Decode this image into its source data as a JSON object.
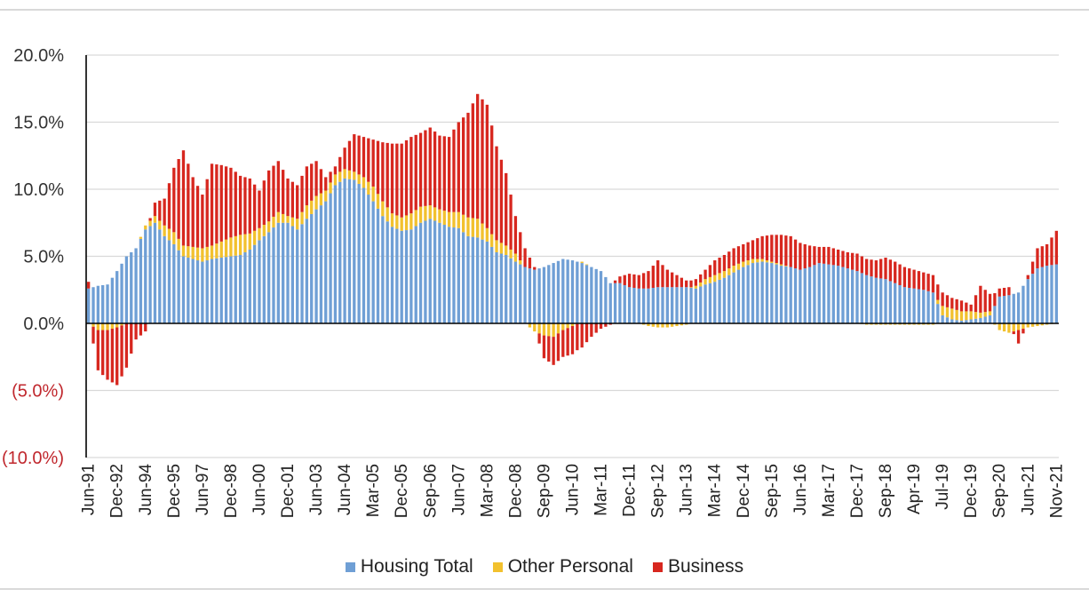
{
  "chart_data": {
    "type": "bar",
    "stacked": true,
    "title": "",
    "xlabel": "",
    "ylabel": "",
    "ylim": [
      -10,
      20
    ],
    "y_ticks": [
      {
        "value": 20,
        "label": "20.0%",
        "color": "#333333"
      },
      {
        "value": 15,
        "label": "15.0%",
        "color": "#333333"
      },
      {
        "value": 10,
        "label": "10.0%",
        "color": "#333333"
      },
      {
        "value": 5,
        "label": "5.0%",
        "color": "#333333"
      },
      {
        "value": 0,
        "label": "0.0%",
        "color": "#333333"
      },
      {
        "value": -5,
        "label": "(5.0%)",
        "color": "#c0272d"
      },
      {
        "value": -10,
        "label": "(10.0%)",
        "color": "#c0272d"
      }
    ],
    "grid": true,
    "legend_position": "bottom",
    "x_tick_labels": [
      {
        "index": 0,
        "label": "Jun-91"
      },
      {
        "index": 6,
        "label": "Dec-92"
      },
      {
        "index": 12,
        "label": "Jun-94"
      },
      {
        "index": 18,
        "label": "Dec-95"
      },
      {
        "index": 24,
        "label": "Jun-97"
      },
      {
        "index": 30,
        "label": "Dec-98"
      },
      {
        "index": 36,
        "label": "Jun-00"
      },
      {
        "index": 42,
        "label": "Dec-01"
      },
      {
        "index": 48,
        "label": "Jun-03"
      },
      {
        "index": 54,
        "label": "Jun-04"
      },
      {
        "index": 60,
        "label": "Mar-05"
      },
      {
        "index": 66,
        "label": "Dec-05"
      },
      {
        "index": 72,
        "label": "Sep-06"
      },
      {
        "index": 78,
        "label": "Jun-07"
      },
      {
        "index": 84,
        "label": "Mar-08"
      },
      {
        "index": 90,
        "label": "Dec-08"
      },
      {
        "index": 96,
        "label": "Sep-09"
      },
      {
        "index": 102,
        "label": "Jun-10"
      },
      {
        "index": 108,
        "label": "Mar-11"
      },
      {
        "index": 114,
        "label": "Dec-11"
      },
      {
        "index": 120,
        "label": "Sep-12"
      },
      {
        "index": 126,
        "label": "Jun-13"
      },
      {
        "index": 132,
        "label": "Mar-14"
      },
      {
        "index": 138,
        "label": "Dec-14"
      },
      {
        "index": 144,
        "label": "Sep-15"
      },
      {
        "index": 150,
        "label": "Jun-16"
      },
      {
        "index": 156,
        "label": "Mar-17"
      },
      {
        "index": 162,
        "label": "Dec-17"
      },
      {
        "index": 168,
        "label": "Sep-18"
      },
      {
        "index": 174,
        "label": "Apr-19"
      },
      {
        "index": 180,
        "label": "Jul-19"
      },
      {
        "index": 186,
        "label": "Dec-19"
      },
      {
        "index": 192,
        "label": "Sep-20"
      },
      {
        "index": 198,
        "label": "Jun-21"
      },
      {
        "index": 204,
        "label": "Nov-21"
      }
    ],
    "anchors": [
      [
        0,
        2.6,
        0.0,
        0.5
      ],
      [
        2,
        2.8,
        -0.5,
        -3.0
      ],
      [
        4,
        2.9,
        -0.5,
        -3.7
      ],
      [
        6,
        3.9,
        -0.3,
        -4.3
      ],
      [
        8,
        5.0,
        0.0,
        -3.3
      ],
      [
        10,
        5.6,
        0.0,
        -1.2
      ],
      [
        12,
        7.0,
        0.3,
        -0.6
      ],
      [
        14,
        7.5,
        0.5,
        1.0
      ],
      [
        16,
        6.5,
        0.8,
        2.0
      ],
      [
        18,
        5.9,
        0.9,
        4.8
      ],
      [
        20,
        5.0,
        0.8,
        7.1
      ],
      [
        22,
        4.8,
        0.9,
        5.2
      ],
      [
        24,
        4.6,
        1.0,
        4.0
      ],
      [
        26,
        4.8,
        1.0,
        6.1
      ],
      [
        28,
        4.9,
        1.2,
        5.7
      ],
      [
        30,
        5.0,
        1.4,
        5.2
      ],
      [
        32,
        5.1,
        1.5,
        4.4
      ],
      [
        34,
        5.5,
        1.2,
        4.1
      ],
      [
        36,
        6.2,
        0.9,
        2.8
      ],
      [
        38,
        6.8,
        0.8,
        3.8
      ],
      [
        40,
        7.5,
        0.8,
        3.8
      ],
      [
        42,
        7.5,
        0.5,
        2.8
      ],
      [
        44,
        7.0,
        0.8,
        2.5
      ],
      [
        46,
        7.8,
        1.0,
        2.9
      ],
      [
        48,
        8.5,
        1.0,
        2.6
      ],
      [
        50,
        9.1,
        0.8,
        1.0
      ],
      [
        52,
        10.3,
        0.8,
        0.6
      ],
      [
        54,
        10.8,
        0.7,
        1.6
      ],
      [
        56,
        10.7,
        0.6,
        2.8
      ],
      [
        58,
        10.1,
        0.8,
        3.0
      ],
      [
        60,
        9.1,
        1.1,
        3.5
      ],
      [
        62,
        8.0,
        1.1,
        4.4
      ],
      [
        64,
        7.2,
        1.0,
        5.2
      ],
      [
        66,
        6.9,
        1.0,
        5.5
      ],
      [
        68,
        7.0,
        1.2,
        5.7
      ],
      [
        70,
        7.5,
        1.2,
        5.5
      ],
      [
        72,
        7.8,
        1.0,
        5.8
      ],
      [
        74,
        7.5,
        1.0,
        5.5
      ],
      [
        76,
        7.2,
        1.1,
        5.6
      ],
      [
        78,
        7.1,
        1.2,
        6.7
      ],
      [
        80,
        6.5,
        1.4,
        7.8
      ],
      [
        82,
        6.4,
        1.4,
        9.3
      ],
      [
        84,
        6.1,
        1.0,
        9.2
      ],
      [
        86,
        5.3,
        0.9,
        7.0
      ],
      [
        88,
        5.1,
        0.7,
        5.4
      ],
      [
        90,
        4.6,
        0.6,
        2.8
      ],
      [
        92,
        4.2,
        0.0,
        1.4
      ],
      [
        94,
        4.0,
        -0.6,
        0.2
      ],
      [
        96,
        4.2,
        -0.9,
        -1.7
      ],
      [
        98,
        4.5,
        -1.0,
        -2.1
      ],
      [
        100,
        4.8,
        -0.5,
        -2.0
      ],
      [
        102,
        4.7,
        -0.2,
        -2.1
      ],
      [
        104,
        4.5,
        0.1,
        -1.8
      ],
      [
        106,
        4.2,
        0.0,
        -1.0
      ],
      [
        108,
        3.9,
        0.0,
        -0.4
      ],
      [
        110,
        3.0,
        0.0,
        -0.1
      ],
      [
        112,
        3.0,
        0.0,
        0.5
      ],
      [
        114,
        2.7,
        0.0,
        1.0
      ],
      [
        116,
        2.6,
        0.0,
        1.0
      ],
      [
        118,
        2.6,
        -0.2,
        1.3
      ],
      [
        120,
        2.7,
        -0.3,
        2.0
      ],
      [
        122,
        2.7,
        -0.3,
        1.3
      ],
      [
        124,
        2.7,
        -0.2,
        0.9
      ],
      [
        126,
        2.7,
        -0.1,
        0.5
      ],
      [
        128,
        2.6,
        0.2,
        0.5
      ],
      [
        130,
        2.9,
        0.4,
        0.7
      ],
      [
        132,
        3.1,
        0.5,
        1.1
      ],
      [
        134,
        3.4,
        0.5,
        1.2
      ],
      [
        136,
        3.8,
        0.5,
        1.3
      ],
      [
        138,
        4.2,
        0.4,
        1.3
      ],
      [
        140,
        4.5,
        0.3,
        1.4
      ],
      [
        142,
        4.6,
        0.2,
        1.7
      ],
      [
        144,
        4.5,
        0.1,
        2.0
      ],
      [
        146,
        4.3,
        0.1,
        2.2
      ],
      [
        148,
        4.2,
        0.0,
        2.3
      ],
      [
        150,
        4.0,
        0.0,
        2.0
      ],
      [
        152,
        4.2,
        0.0,
        1.6
      ],
      [
        154,
        4.5,
        0.0,
        1.2
      ],
      [
        156,
        4.4,
        0.0,
        1.3
      ],
      [
        158,
        4.3,
        0.0,
        1.2
      ],
      [
        160,
        4.1,
        0.0,
        1.2
      ],
      [
        162,
        3.9,
        0.0,
        1.3
      ],
      [
        164,
        3.6,
        -0.1,
        1.2
      ],
      [
        166,
        3.4,
        -0.1,
        1.3
      ],
      [
        168,
        3.3,
        -0.1,
        1.6
      ],
      [
        170,
        3.0,
        -0.1,
        1.6
      ],
      [
        172,
        2.7,
        -0.1,
        1.5
      ],
      [
        174,
        2.6,
        -0.1,
        1.4
      ],
      [
        176,
        2.5,
        -0.1,
        1.3
      ],
      [
        178,
        2.3,
        -0.1,
        1.3
      ],
      [
        180,
        0.6,
        0.7,
        1.0
      ],
      [
        182,
        0.3,
        0.8,
        0.8
      ],
      [
        184,
        0.2,
        0.7,
        0.8
      ],
      [
        186,
        0.3,
        0.6,
        0.5
      ],
      [
        188,
        0.4,
        0.4,
        2.0
      ],
      [
        190,
        0.6,
        0.3,
        1.3
      ],
      [
        192,
        2.0,
        -0.5,
        0.6
      ],
      [
        194,
        2.1,
        -0.7,
        0.6
      ],
      [
        196,
        2.3,
        -0.5,
        -1.0
      ],
      [
        198,
        3.3,
        -0.3,
        0.3
      ],
      [
        200,
        4.1,
        -0.2,
        1.5
      ],
      [
        202,
        4.3,
        -0.1,
        1.6
      ],
      [
        204,
        4.4,
        0.0,
        2.5
      ]
    ],
    "bar_count": 205,
    "series": [
      {
        "name": "Housing Total",
        "color": "#6f9fd5"
      },
      {
        "name": "Other Personal",
        "color": "#f2c12e"
      },
      {
        "name": "Business",
        "color": "#d7271f"
      }
    ]
  }
}
